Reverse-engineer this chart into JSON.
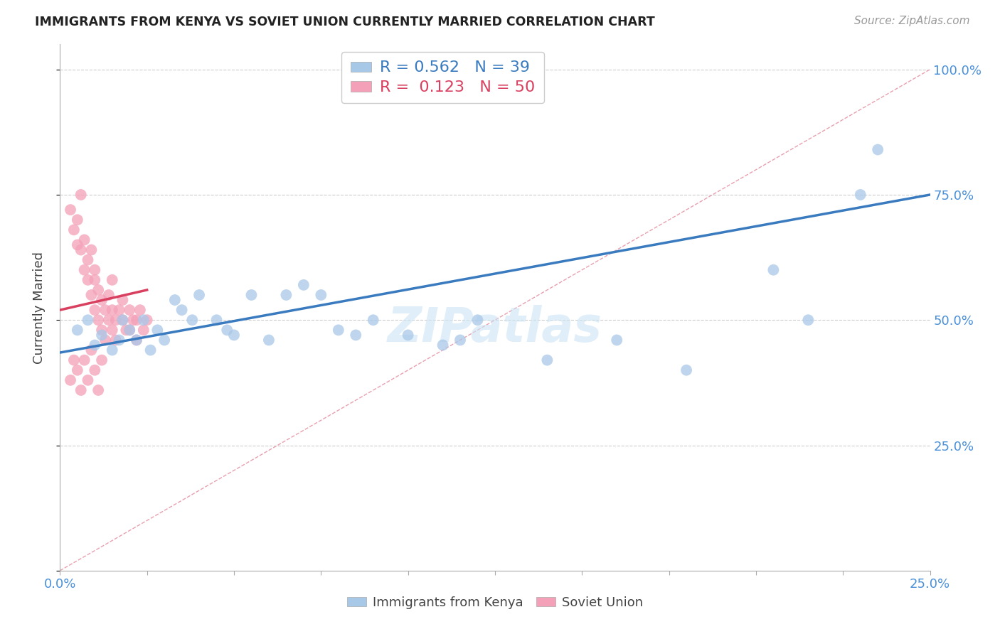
{
  "title": "IMMIGRANTS FROM KENYA VS SOVIET UNION CURRENTLY MARRIED CORRELATION CHART",
  "source_text": "Source: ZipAtlas.com",
  "ylabel": "Currently Married",
  "xlim": [
    0.0,
    0.25
  ],
  "ylim": [
    0.0,
    1.05
  ],
  "kenya_R": 0.562,
  "kenya_N": 39,
  "soviet_R": 0.123,
  "soviet_N": 50,
  "kenya_color": "#a8c8e8",
  "soviet_color": "#f4a0b8",
  "kenya_line_color": "#3a7bbf",
  "soviet_line_color": "#d94060",
  "diagonal_color": "#e8a0b0",
  "watermark_text": "ZIPatlas",
  "kenya_x": [
    0.005,
    0.008,
    0.01,
    0.012,
    0.015,
    0.017,
    0.018,
    0.02,
    0.022,
    0.024,
    0.026,
    0.028,
    0.03,
    0.033,
    0.035,
    0.038,
    0.04,
    0.045,
    0.048,
    0.05,
    0.055,
    0.06,
    0.065,
    0.07,
    0.075,
    0.08,
    0.085,
    0.09,
    0.1,
    0.11,
    0.115,
    0.12,
    0.14,
    0.16,
    0.18,
    0.205,
    0.215,
    0.23,
    0.235
  ],
  "kenya_y": [
    0.48,
    0.5,
    0.45,
    0.47,
    0.44,
    0.46,
    0.5,
    0.48,
    0.46,
    0.5,
    0.44,
    0.48,
    0.46,
    0.54,
    0.52,
    0.5,
    0.55,
    0.5,
    0.48,
    0.47,
    0.55,
    0.46,
    0.55,
    0.57,
    0.55,
    0.48,
    0.47,
    0.5,
    0.47,
    0.45,
    0.46,
    0.5,
    0.42,
    0.46,
    0.4,
    0.6,
    0.5,
    0.75,
    0.84
  ],
  "soviet_x": [
    0.003,
    0.004,
    0.005,
    0.005,
    0.006,
    0.006,
    0.007,
    0.007,
    0.008,
    0.008,
    0.009,
    0.009,
    0.01,
    0.01,
    0.01,
    0.011,
    0.011,
    0.012,
    0.012,
    0.013,
    0.013,
    0.014,
    0.014,
    0.015,
    0.015,
    0.015,
    0.016,
    0.016,
    0.017,
    0.018,
    0.018,
    0.019,
    0.02,
    0.02,
    0.021,
    0.022,
    0.022,
    0.023,
    0.024,
    0.025,
    0.003,
    0.004,
    0.005,
    0.006,
    0.007,
    0.008,
    0.009,
    0.01,
    0.011,
    0.012
  ],
  "soviet_y": [
    0.72,
    0.68,
    0.7,
    0.65,
    0.75,
    0.64,
    0.66,
    0.6,
    0.62,
    0.58,
    0.64,
    0.55,
    0.58,
    0.52,
    0.6,
    0.56,
    0.5,
    0.54,
    0.48,
    0.52,
    0.46,
    0.5,
    0.55,
    0.48,
    0.52,
    0.58,
    0.5,
    0.46,
    0.52,
    0.5,
    0.54,
    0.48,
    0.52,
    0.48,
    0.5,
    0.5,
    0.46,
    0.52,
    0.48,
    0.5,
    0.38,
    0.42,
    0.4,
    0.36,
    0.42,
    0.38,
    0.44,
    0.4,
    0.36,
    0.42
  ],
  "kenya_line_x0": 0.0,
  "kenya_line_y0": 0.435,
  "kenya_line_x1": 0.25,
  "kenya_line_y1": 0.75,
  "soviet_line_x0": 0.0,
  "soviet_line_y0": 0.52,
  "soviet_line_x1": 0.025,
  "soviet_line_y1": 0.56
}
